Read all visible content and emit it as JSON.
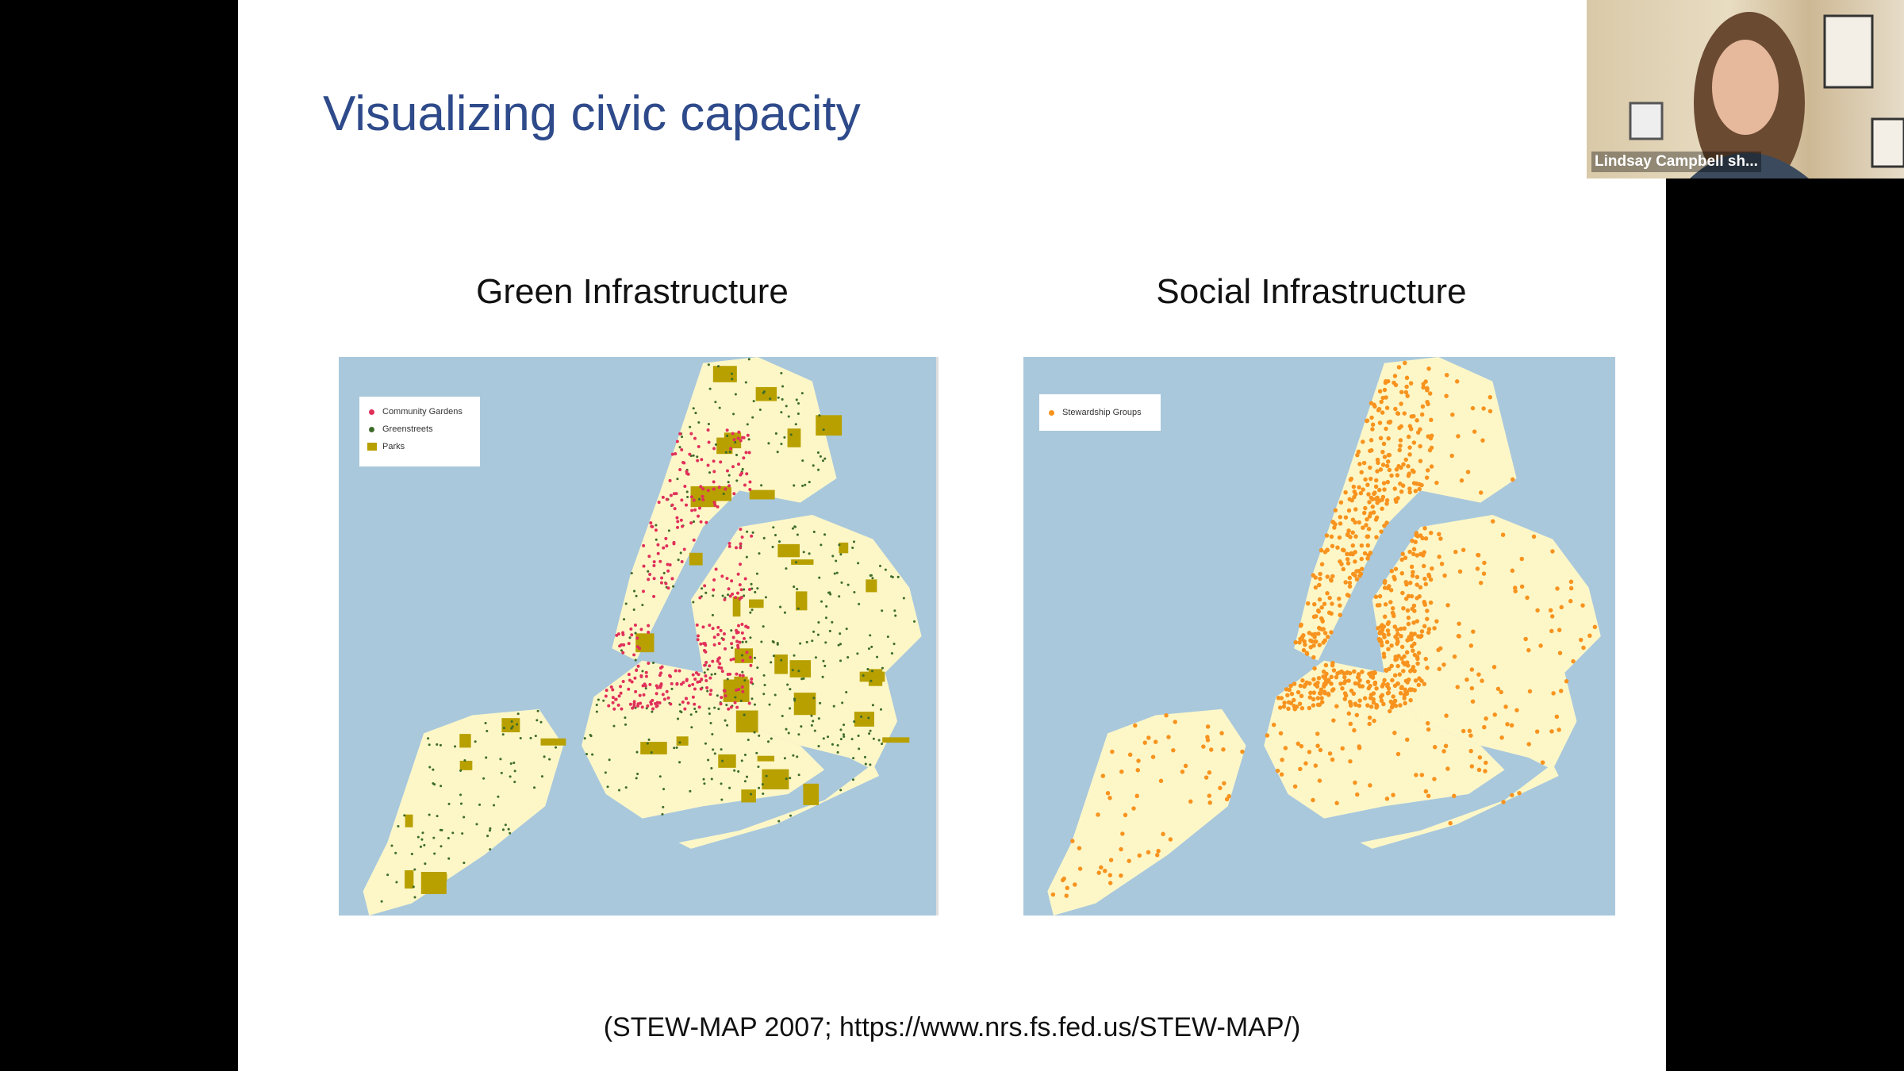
{
  "slide": {
    "title": "Visualizing civic capacity",
    "maps": [
      {
        "title": "Green Infrastructure",
        "legend": [
          "Community Gardens",
          "Greenstreets",
          "Parks"
        ]
      },
      {
        "title": "Social Infrastructure",
        "legend": [
          "Stewardship Groups"
        ]
      }
    ],
    "caption": "(STEW-MAP 2007; https://www.nrs.fs.fed.us/STEW-MAP/)"
  },
  "webcam": {
    "name_label": "Lindsay Campbell sh..."
  }
}
